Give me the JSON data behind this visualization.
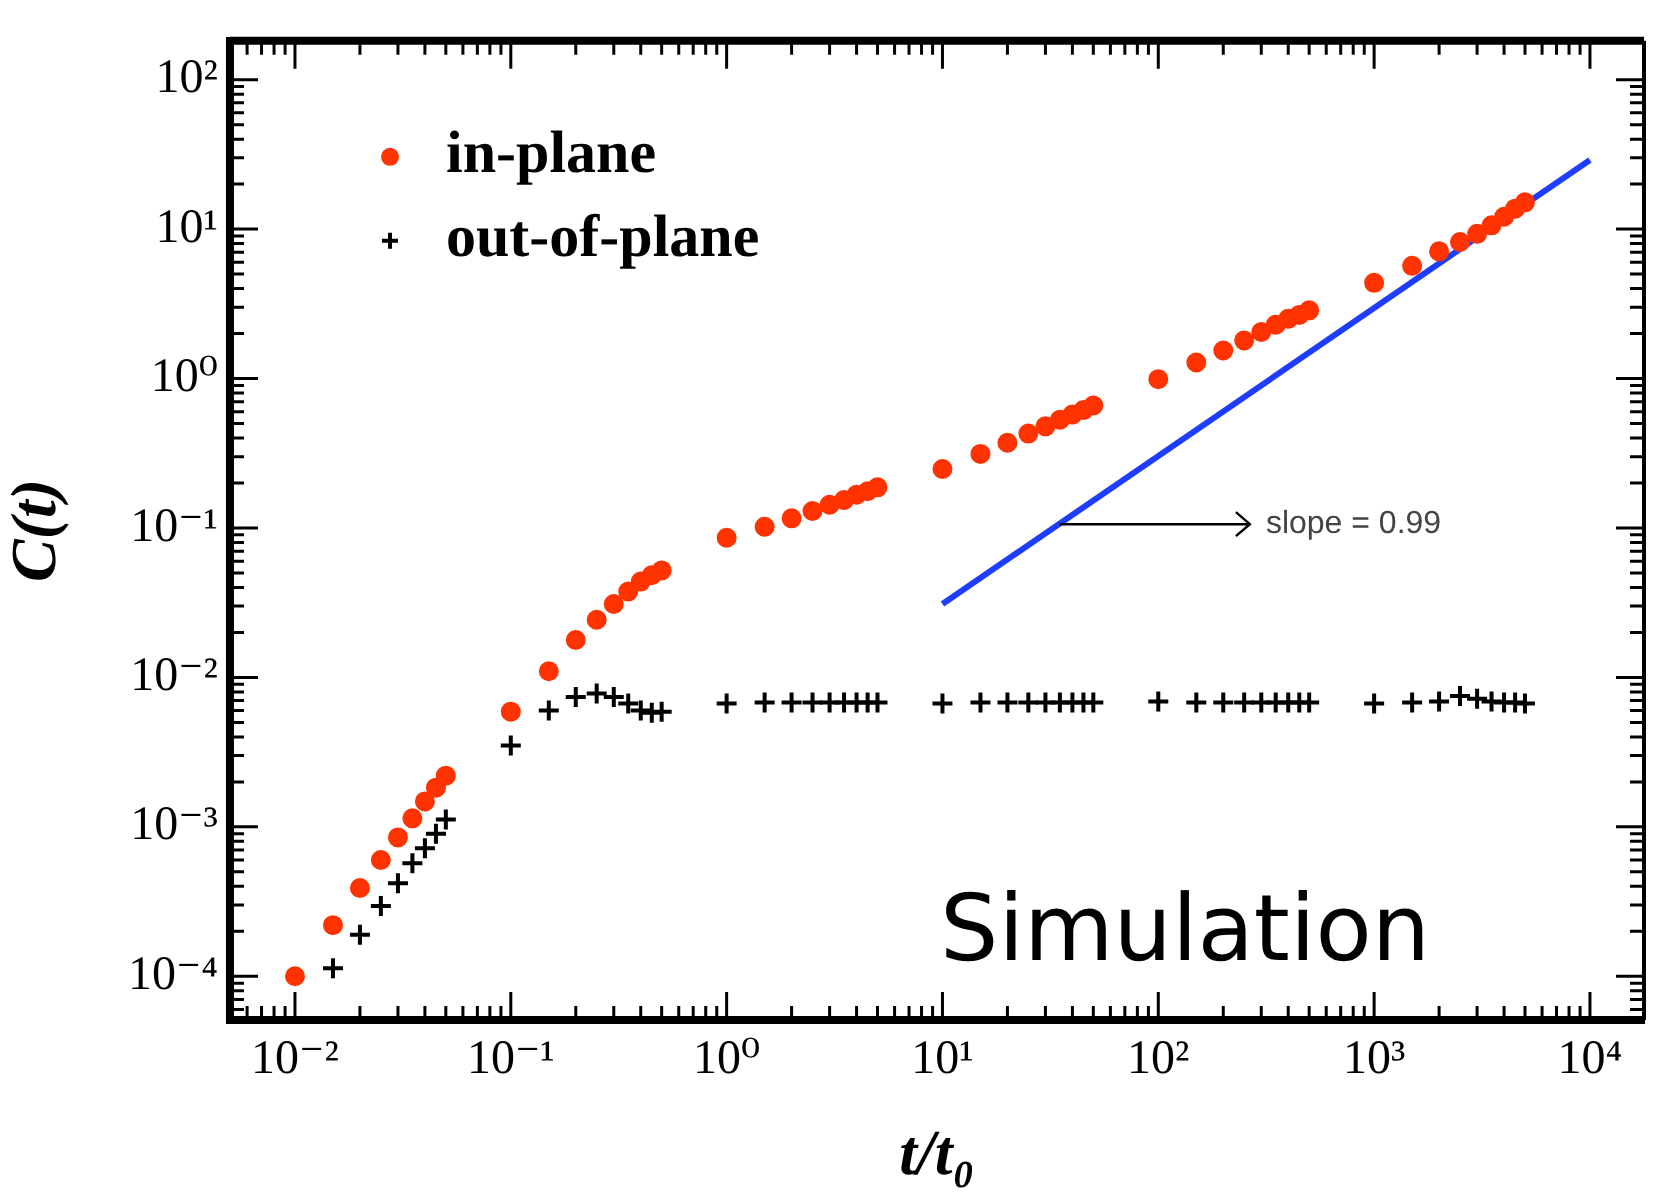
{
  "chart_data": {
    "type": "scatter",
    "xlabel": "t/t₀",
    "ylabel": "C(t)",
    "log": "xy",
    "grid": false,
    "legend": "top left",
    "xlim": [
      0.005,
      17800
    ],
    "ylim": [
      5.1e-05,
      182
    ],
    "xticks": [
      {
        "value": 0.006,
        "label": null
      },
      {
        "value": 0.007,
        "label": null
      },
      {
        "value": 0.008,
        "label": null
      },
      {
        "value": 0.009,
        "label": null
      },
      {
        "value": 0.01,
        "label": "10⁻²"
      },
      {
        "value": 0.02,
        "label": null
      },
      {
        "value": 0.03,
        "label": null
      },
      {
        "value": 0.04,
        "label": null
      },
      {
        "value": 0.05,
        "label": null
      },
      {
        "value": 0.06,
        "label": null
      },
      {
        "value": 0.07,
        "label": null
      },
      {
        "value": 0.08,
        "label": null
      },
      {
        "value": 0.09,
        "label": null
      },
      {
        "value": 0.1,
        "label": "10⁻¹"
      },
      {
        "value": 0.2,
        "label": null
      },
      {
        "value": 0.3,
        "label": null
      },
      {
        "value": 0.4,
        "label": null
      },
      {
        "value": 0.5,
        "label": null
      },
      {
        "value": 0.6,
        "label": null
      },
      {
        "value": 0.7,
        "label": null
      },
      {
        "value": 0.8,
        "label": null
      },
      {
        "value": 0.9,
        "label": null
      },
      {
        "value": 1,
        "label": "10⁰"
      },
      {
        "value": 2,
        "label": null
      },
      {
        "value": 3,
        "label": null
      },
      {
        "value": 4,
        "label": null
      },
      {
        "value": 5,
        "label": null
      },
      {
        "value": 6,
        "label": null
      },
      {
        "value": 7,
        "label": null
      },
      {
        "value": 8,
        "label": null
      },
      {
        "value": 9,
        "label": null
      },
      {
        "value": 10,
        "label": "10¹"
      },
      {
        "value": 20,
        "label": null
      },
      {
        "value": 30,
        "label": null
      },
      {
        "value": 40,
        "label": null
      },
      {
        "value": 50,
        "label": null
      },
      {
        "value": 60,
        "label": null
      },
      {
        "value": 70,
        "label": null
      },
      {
        "value": 80,
        "label": null
      },
      {
        "value": 90,
        "label": null
      },
      {
        "value": 100,
        "label": "10²"
      },
      {
        "value": 200,
        "label": null
      },
      {
        "value": 300,
        "label": null
      },
      {
        "value": 400,
        "label": null
      },
      {
        "value": 500,
        "label": null
      },
      {
        "value": 600,
        "label": null
      },
      {
        "value": 700,
        "label": null
      },
      {
        "value": 800,
        "label": null
      },
      {
        "value": 900,
        "label": null
      },
      {
        "value": 1000,
        "label": "10³"
      },
      {
        "value": 2000,
        "label": null
      },
      {
        "value": 3000,
        "label": null
      },
      {
        "value": 4000,
        "label": null
      },
      {
        "value": 5000,
        "label": null
      },
      {
        "value": 6000,
        "label": null
      },
      {
        "value": 7000,
        "label": null
      },
      {
        "value": 8000,
        "label": null
      },
      {
        "value": 9000,
        "label": null
      },
      {
        "value": 10000,
        "label": "10⁴"
      }
    ],
    "yticks": [
      {
        "value": 6e-05,
        "label": null
      },
      {
        "value": 7e-05,
        "label": null
      },
      {
        "value": 8e-05,
        "label": null
      },
      {
        "value": 9e-05,
        "label": null
      },
      {
        "value": 0.0001,
        "label": "10⁻⁴"
      },
      {
        "value": 0.0002,
        "label": null
      },
      {
        "value": 0.0003,
        "label": null
      },
      {
        "value": 0.0004,
        "label": null
      },
      {
        "value": 0.0005,
        "label": null
      },
      {
        "value": 0.0006,
        "label": null
      },
      {
        "value": 0.0007,
        "label": null
      },
      {
        "value": 0.0008,
        "label": null
      },
      {
        "value": 0.0009,
        "label": null
      },
      {
        "value": 0.001,
        "label": "10⁻³"
      },
      {
        "value": 0.002,
        "label": null
      },
      {
        "value": 0.003,
        "label": null
      },
      {
        "value": 0.004,
        "label": null
      },
      {
        "value": 0.005,
        "label": null
      },
      {
        "value": 0.006,
        "label": null
      },
      {
        "value": 0.007,
        "label": null
      },
      {
        "value": 0.008,
        "label": null
      },
      {
        "value": 0.009,
        "label": null
      },
      {
        "value": 0.01,
        "label": "10⁻²"
      },
      {
        "value": 0.02,
        "label": null
      },
      {
        "value": 0.03,
        "label": null
      },
      {
        "value": 0.04,
        "label": null
      },
      {
        "value": 0.05,
        "label": null
      },
      {
        "value": 0.06,
        "label": null
      },
      {
        "value": 0.07,
        "label": null
      },
      {
        "value": 0.08,
        "label": null
      },
      {
        "value": 0.09,
        "label": null
      },
      {
        "value": 0.1,
        "label": "10⁻¹"
      },
      {
        "value": 0.2,
        "label": null
      },
      {
        "value": 0.3,
        "label": null
      },
      {
        "value": 0.4,
        "label": null
      },
      {
        "value": 0.5,
        "label": null
      },
      {
        "value": 0.6,
        "label": null
      },
      {
        "value": 0.7,
        "label": null
      },
      {
        "value": 0.8,
        "label": null
      },
      {
        "value": 0.9,
        "label": null
      },
      {
        "value": 1,
        "label": "10⁰"
      },
      {
        "value": 2,
        "label": null
      },
      {
        "value": 3,
        "label": null
      },
      {
        "value": 4,
        "label": null
      },
      {
        "value": 5,
        "label": null
      },
      {
        "value": 6,
        "label": null
      },
      {
        "value": 7,
        "label": null
      },
      {
        "value": 8,
        "label": null
      },
      {
        "value": 9,
        "label": null
      },
      {
        "value": 10,
        "label": "10¹"
      },
      {
        "value": 20,
        "label": null
      },
      {
        "value": 30,
        "label": null
      },
      {
        "value": 40,
        "label": null
      },
      {
        "value": 50,
        "label": null
      },
      {
        "value": 60,
        "label": null
      },
      {
        "value": 70,
        "label": null
      },
      {
        "value": 80,
        "label": null
      },
      {
        "value": 90,
        "label": null
      },
      {
        "value": 100,
        "label": "10²"
      }
    ],
    "x": [
      0.01,
      0.015,
      0.02,
      0.025,
      0.03,
      0.035,
      0.04,
      0.045,
      0.05,
      0.1,
      0.15,
      0.2,
      0.25,
      0.3,
      0.35,
      0.4,
      0.45,
      0.5,
      1,
      1.5,
      2,
      2.5,
      3,
      3.5,
      4,
      4.5,
      5,
      10,
      15,
      20,
      25,
      30,
      35,
      40,
      45,
      50,
      100,
      150,
      200,
      250,
      300,
      350,
      400,
      450,
      500,
      1000,
      1500,
      2000,
      2500,
      3000,
      3500,
      4000,
      4500,
      5000
    ],
    "series": [
      {
        "name": "in-plane",
        "type": "scatter",
        "marker": "circle",
        "color": "#ff3300",
        "values": [
          0.0001,
          0.00022,
          0.00039,
          0.0006,
          0.00085,
          0.00114,
          0.00148,
          0.00183,
          0.0022,
          0.0059,
          0.011,
          0.0178,
          0.0243,
          0.031,
          0.0376,
          0.0438,
          0.0483,
          0.052,
          0.086,
          0.102,
          0.116,
          0.13,
          0.143,
          0.154,
          0.167,
          0.176,
          0.187,
          0.248,
          0.313,
          0.372,
          0.428,
          0.479,
          0.53,
          0.574,
          0.615,
          0.66,
          0.99,
          1.28,
          1.54,
          1.8,
          2.05,
          2.29,
          2.51,
          2.66,
          2.86,
          4.37,
          5.68,
          7.1,
          8.2,
          9.3,
          10.6,
          12.1,
          13.7,
          15.1
        ]
      },
      {
        "name": "out-of-plane",
        "type": "scatter",
        "marker": "cross",
        "color": "#000000",
        "values": [
          null,
          0.000113,
          0.00019,
          0.000295,
          0.00042,
          0.00057,
          0.00072,
          0.0009,
          0.00112,
          0.0035,
          0.006,
          0.0074,
          0.0078,
          0.0074,
          0.0067,
          0.006,
          0.0058,
          0.0059,
          0.0067,
          0.0068,
          0.0068,
          0.0068,
          0.0068,
          0.0068,
          0.0068,
          0.0068,
          0.0068,
          0.0067,
          0.0068,
          0.0068,
          0.0068,
          0.0068,
          0.0068,
          0.0068,
          0.0068,
          0.0068,
          0.0069,
          0.0068,
          0.0068,
          0.0068,
          0.0068,
          0.0068,
          0.0068,
          0.0068,
          0.0068,
          0.0067,
          0.0068,
          0.0069,
          0.0075,
          0.0072,
          0.0069,
          0.0068,
          0.0068,
          0.0067
        ]
      },
      {
        "type": "line",
        "marker": "none",
        "line_style": "solid",
        "color": "#1f3dff",
        "x": [
          10,
          10000
        ],
        "values": [
          0.031,
          29
        ]
      }
    ],
    "annotations": [
      "Simulation",
      {
        "text": "slope = 0.99",
        "x": 35,
        "y": 0.106
      }
    ]
  }
}
